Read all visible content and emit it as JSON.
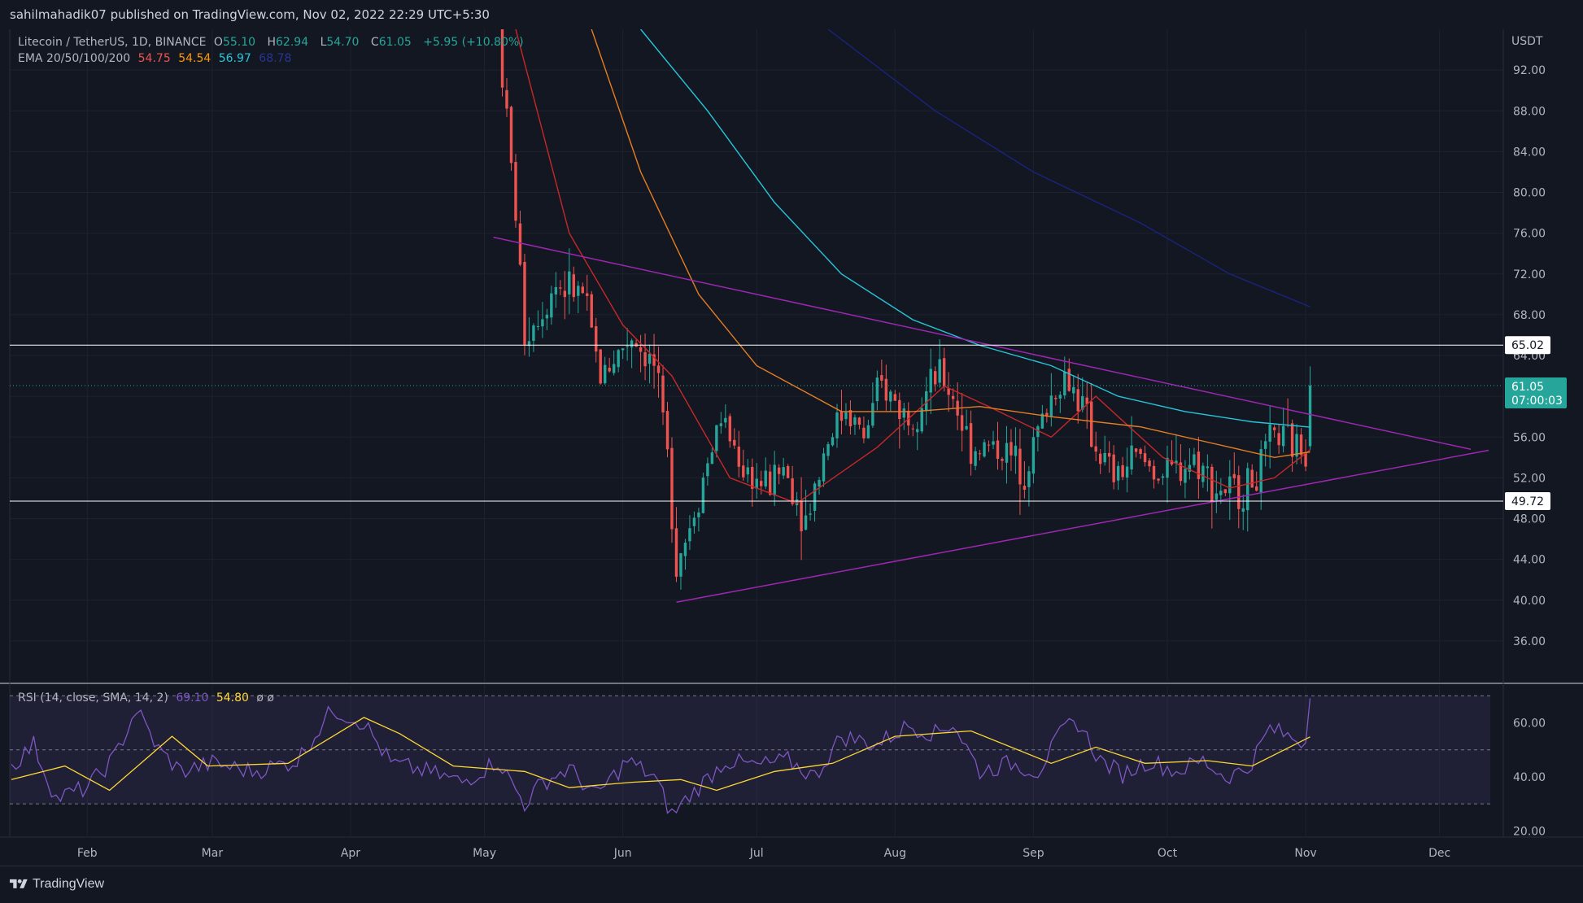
{
  "header": {
    "publisher": "sahilmahadik07 published on TradingView.com, Nov 02, 2022 22:29 UTC+5:30"
  },
  "footer": {
    "brand": "TradingView"
  },
  "legend": {
    "symbol": "Litecoin / TetherUS, 1D, BINANCE",
    "o_label": "O",
    "o_val": "55.10",
    "h_label": "H",
    "h_val": "62.94",
    "l_label": "L",
    "l_val": "54.70",
    "c_label": "C",
    "c_val": "61.05",
    "change": "+5.95 (+10.80%)",
    "ema_label": "EMA 20/50/100/200",
    "ema20": "54.75",
    "ema50": "54.54",
    "ema100": "56.97",
    "ema200": "68.78"
  },
  "rsi_legend": {
    "label": "RSI (14, close, SMA, 14, 2)",
    "rsi": "69.10",
    "sma": "54.80",
    "extra": "ø ø"
  },
  "colors": {
    "bg": "#131722",
    "up": "#26a69a",
    "down": "#ef5350",
    "ema20": "#c62828",
    "ema50": "#e67e22",
    "ema100": "#26c6da",
    "ema200": "#1a237e",
    "trend": "#9c27b0",
    "rsi": "#7e57c2",
    "rsi_sma": "#fdd835"
  },
  "chart_data": [
    {
      "type": "candlestick",
      "title": "Litecoin / TetherUS, 1D, BINANCE",
      "y_unit": "USDT",
      "x_ticks": [
        "Feb",
        "Mar",
        "Apr",
        "May",
        "Jun",
        "Jul",
        "Aug",
        "Sep",
        "Oct",
        "Nov",
        "Dec"
      ],
      "y_ticks": [
        "36.00",
        "40.00",
        "44.00",
        "48.00",
        "52.00",
        "56.00",
        "60.00",
        "64.00",
        "68.00",
        "72.00",
        "76.00",
        "80.00",
        "84.00",
        "88.00",
        "92.00"
      ],
      "ylim": [
        32,
        96
      ],
      "horizontal_levels": [
        {
          "label": "65.02",
          "value": 65.02
        },
        {
          "label": "49.72",
          "value": 49.72
        }
      ],
      "last_price": {
        "value": 61.05,
        "label": "61.05",
        "countdown": "07:00:03"
      },
      "date_range": [
        "2022-01-15",
        "2022-12-12"
      ],
      "trendlines": [
        {
          "name": "descending",
          "points": [
            [
              "2022-05-03",
              75.6
            ],
            [
              "2022-12-08",
              54.8
            ]
          ]
        },
        {
          "name": "ascending",
          "points": [
            [
              "2022-06-13",
              39.8
            ],
            [
              "2022-12-12",
              54.7
            ]
          ]
        }
      ],
      "ema_anchors": {
        "ema20": [
          [
            "2022-05-08",
            96
          ],
          [
            "2022-05-20",
            76
          ],
          [
            "2022-06-01",
            67
          ],
          [
            "2022-06-12",
            62
          ],
          [
            "2022-06-25",
            52
          ],
          [
            "2022-07-10",
            49.5
          ],
          [
            "2022-07-28",
            55
          ],
          [
            "2022-08-12",
            61
          ],
          [
            "2022-08-22",
            59
          ],
          [
            "2022-09-05",
            56
          ],
          [
            "2022-09-15",
            60
          ],
          [
            "2022-09-30",
            54
          ],
          [
            "2022-10-15",
            51
          ],
          [
            "2022-10-25",
            52
          ],
          [
            "2022-11-02",
            54.75
          ]
        ],
        "ema50": [
          [
            "2022-05-25",
            96
          ],
          [
            "2022-06-05",
            82
          ],
          [
            "2022-06-18",
            70
          ],
          [
            "2022-07-01",
            63
          ],
          [
            "2022-07-20",
            58.5
          ],
          [
            "2022-08-05",
            58.5
          ],
          [
            "2022-08-20",
            59
          ],
          [
            "2022-09-05",
            58
          ],
          [
            "2022-09-25",
            57
          ],
          [
            "2022-10-10",
            55.5
          ],
          [
            "2022-10-25",
            54
          ],
          [
            "2022-11-02",
            54.54
          ]
        ],
        "ema100": [
          [
            "2022-06-05",
            96
          ],
          [
            "2022-06-20",
            88
          ],
          [
            "2022-07-05",
            79
          ],
          [
            "2022-07-20",
            72
          ],
          [
            "2022-08-05",
            67.5
          ],
          [
            "2022-08-20",
            65
          ],
          [
            "2022-09-05",
            63
          ],
          [
            "2022-09-20",
            60
          ],
          [
            "2022-10-05",
            58.5
          ],
          [
            "2022-10-20",
            57.5
          ],
          [
            "2022-11-02",
            56.97
          ]
        ],
        "ema200": [
          [
            "2022-07-17",
            96
          ],
          [
            "2022-08-10",
            88
          ],
          [
            "2022-09-01",
            82
          ],
          [
            "2022-09-25",
            77
          ],
          [
            "2022-10-15",
            72
          ],
          [
            "2022-11-02",
            68.78
          ]
        ]
      },
      "price_path": [
        [
          "2022-05-05",
          96
        ],
        [
          "2022-05-09",
          78
        ],
        [
          "2022-05-11",
          66
        ],
        [
          "2022-05-14",
          68
        ],
        [
          "2022-05-18",
          71
        ],
        [
          "2022-05-24",
          70
        ],
        [
          "2022-05-28",
          62
        ],
        [
          "2022-06-04",
          66
        ],
        [
          "2022-06-09",
          63
        ],
        [
          "2022-06-12",
          54
        ],
        [
          "2022-06-14",
          44
        ],
        [
          "2022-06-16",
          46
        ],
        [
          "2022-06-20",
          52
        ],
        [
          "2022-06-24",
          58
        ],
        [
          "2022-06-29",
          53
        ],
        [
          "2022-07-04",
          51
        ],
        [
          "2022-07-08",
          53
        ],
        [
          "2022-07-13",
          48
        ],
        [
          "2022-07-18",
          56
        ],
        [
          "2022-07-22",
          59
        ],
        [
          "2022-07-26",
          56
        ],
        [
          "2022-07-30",
          61
        ],
        [
          "2022-08-05",
          58
        ],
        [
          "2022-08-12",
          62
        ],
        [
          "2022-08-15",
          60
        ],
        [
          "2022-08-19",
          55
        ],
        [
          "2022-08-25",
          55
        ],
        [
          "2022-08-31",
          53
        ],
        [
          "2022-09-06",
          60
        ],
        [
          "2022-09-09",
          62
        ],
        [
          "2022-09-12",
          60
        ],
        [
          "2022-09-16",
          55
        ],
        [
          "2022-09-20",
          52
        ],
        [
          "2022-09-25",
          54
        ],
        [
          "2022-10-02",
          52
        ],
        [
          "2022-10-08",
          54
        ],
        [
          "2022-10-13",
          51
        ],
        [
          "2022-10-18",
          50.5
        ],
        [
          "2022-10-22",
          52
        ],
        [
          "2022-10-26",
          56
        ],
        [
          "2022-10-31",
          55
        ],
        [
          "2022-11-01",
          55.1
        ]
      ],
      "last_candle": {
        "date": "2022-11-02",
        "o": 55.1,
        "h": 62.94,
        "l": 54.7,
        "c": 61.05
      }
    },
    {
      "type": "line",
      "title": "RSI (14, close, SMA, 14, 2)",
      "y_ticks": [
        "20.00",
        "40.00",
        "60.00"
      ],
      "ylim": [
        18,
        74
      ],
      "bands": [
        30,
        50,
        70
      ],
      "series": [
        {
          "name": "RSI",
          "points": [
            [
              "2022-01-15",
              44
            ],
            [
              "2022-01-20",
              52
            ],
            [
              "2022-01-25",
              32
            ],
            [
              "2022-02-01",
              36
            ],
            [
              "2022-02-07",
              47
            ],
            [
              "2022-02-12",
              65
            ],
            [
              "2022-02-17",
              50
            ],
            [
              "2022-02-22",
              42
            ],
            [
              "2022-03-01",
              45
            ],
            [
              "2022-03-10",
              42
            ],
            [
              "2022-03-20",
              46
            ],
            [
              "2022-03-28",
              65
            ],
            [
              "2022-04-04",
              60
            ],
            [
              "2022-04-10",
              45
            ],
            [
              "2022-04-18",
              42
            ],
            [
              "2022-04-26",
              38
            ],
            [
              "2022-05-04",
              46
            ],
            [
              "2022-05-10",
              30
            ],
            [
              "2022-05-14",
              38
            ],
            [
              "2022-05-20",
              43
            ],
            [
              "2022-05-26",
              33
            ],
            [
              "2022-06-02",
              46
            ],
            [
              "2022-06-08",
              40
            ],
            [
              "2022-06-12",
              26
            ],
            [
              "2022-06-16",
              33
            ],
            [
              "2022-06-24",
              46
            ],
            [
              "2022-07-01",
              44
            ],
            [
              "2022-07-08",
              46
            ],
            [
              "2022-07-14",
              40
            ],
            [
              "2022-07-20",
              55
            ],
            [
              "2022-07-28",
              52
            ],
            [
              "2022-08-04",
              59
            ],
            [
              "2022-08-10",
              56
            ],
            [
              "2022-08-14",
              60
            ],
            [
              "2022-08-20",
              42
            ],
            [
              "2022-08-27",
              45
            ],
            [
              "2022-09-02",
              42
            ],
            [
              "2022-09-08",
              58
            ],
            [
              "2022-09-11",
              60
            ],
            [
              "2022-09-16",
              46
            ],
            [
              "2022-09-21",
              41
            ],
            [
              "2022-09-27",
              46
            ],
            [
              "2022-10-03",
              42
            ],
            [
              "2022-10-09",
              46
            ],
            [
              "2022-10-14",
              40
            ],
            [
              "2022-10-19",
              43
            ],
            [
              "2022-10-24",
              58
            ],
            [
              "2022-10-28",
              55
            ],
            [
              "2022-11-01",
              53
            ],
            [
              "2022-11-02",
              69.1
            ]
          ]
        },
        {
          "name": "SMA",
          "points": [
            [
              "2022-01-15",
              39
            ],
            [
              "2022-01-27",
              44
            ],
            [
              "2022-02-06",
              35
            ],
            [
              "2022-02-20",
              55
            ],
            [
              "2022-02-28",
              44
            ],
            [
              "2022-03-18",
              45
            ],
            [
              "2022-04-04",
              62
            ],
            [
              "2022-04-12",
              56
            ],
            [
              "2022-04-24",
              44
            ],
            [
              "2022-05-10",
              42
            ],
            [
              "2022-05-20",
              36
            ],
            [
              "2022-06-03",
              38
            ],
            [
              "2022-06-14",
              39
            ],
            [
              "2022-06-22",
              35
            ],
            [
              "2022-07-05",
              42
            ],
            [
              "2022-07-18",
              45
            ],
            [
              "2022-08-01",
              55
            ],
            [
              "2022-08-18",
              57
            ],
            [
              "2022-09-05",
              45
            ],
            [
              "2022-09-15",
              51
            ],
            [
              "2022-09-26",
              45
            ],
            [
              "2022-10-10",
              46
            ],
            [
              "2022-10-20",
              44
            ],
            [
              "2022-11-02",
              54.8
            ]
          ]
        }
      ]
    }
  ]
}
